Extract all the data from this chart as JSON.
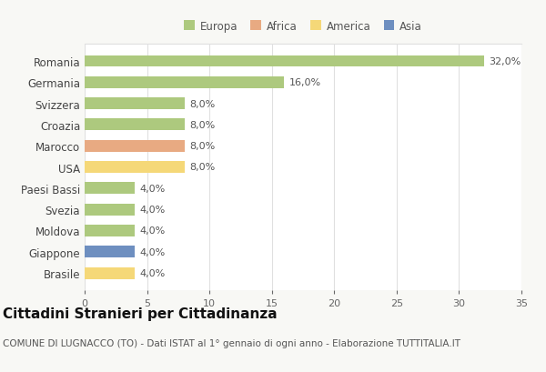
{
  "countries": [
    "Romania",
    "Germania",
    "Svizzera",
    "Croazia",
    "Marocco",
    "USA",
    "Paesi Bassi",
    "Svezia",
    "Moldova",
    "Giappone",
    "Brasile"
  ],
  "values": [
    32.0,
    16.0,
    8.0,
    8.0,
    8.0,
    8.0,
    4.0,
    4.0,
    4.0,
    4.0,
    4.0
  ],
  "continents": [
    "Europa",
    "Europa",
    "Europa",
    "Europa",
    "Africa",
    "America",
    "Europa",
    "Europa",
    "Europa",
    "Asia",
    "America"
  ],
  "colors": {
    "Europa": "#adc97e",
    "Africa": "#e8aa82",
    "America": "#f5d878",
    "Asia": "#6e8fc0"
  },
  "legend_order": [
    "Europa",
    "Africa",
    "America",
    "Asia"
  ],
  "xlim": [
    0,
    35
  ],
  "xticks": [
    0,
    5,
    10,
    15,
    20,
    25,
    30,
    35
  ],
  "title": "Cittadini Stranieri per Cittadinanza",
  "subtitle": "COMUNE DI LUGNACCO (TO) - Dati ISTAT al 1° gennaio di ogni anno - Elaborazione TUTTITALIA.IT",
  "bg_color": "#f8f8f5",
  "plot_bg_color": "#ffffff",
  "grid_color": "#e0e0e0",
  "bar_height": 0.55,
  "label_fontsize": 8,
  "ytick_fontsize": 8.5,
  "xtick_fontsize": 8,
  "title_fontsize": 11,
  "subtitle_fontsize": 7.5,
  "legend_fontsize": 8.5
}
